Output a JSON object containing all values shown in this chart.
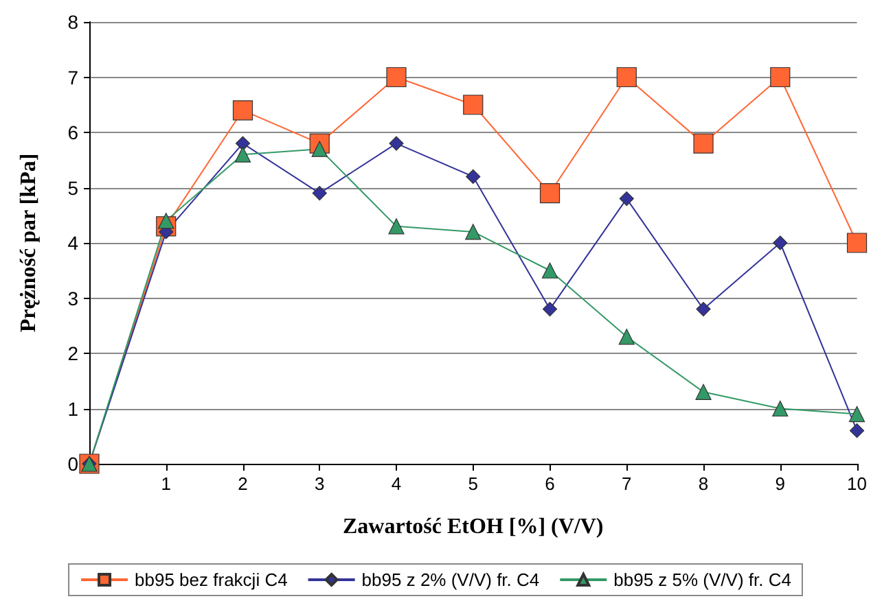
{
  "chart_data": {
    "type": "line",
    "xlabel": "Zawartość EtOH [%] (V/V)",
    "ylabel": "Prężność par [kPa]",
    "x": [
      0,
      1,
      2,
      3,
      4,
      5,
      6,
      7,
      8,
      9,
      10
    ],
    "xlim": [
      0,
      10
    ],
    "xticks": [
      {
        "value": 0,
        "label": null
      },
      1,
      2,
      3,
      4,
      5,
      6,
      7,
      8,
      9,
      10
    ],
    "ylim": [
      0,
      8
    ],
    "yticks": [
      0,
      1,
      2,
      3,
      4,
      5,
      6,
      7,
      8
    ],
    "grid": "y",
    "legend": "bottom",
    "series": [
      {
        "name": "bb95 bez frakcji C4",
        "color": "#ff6633",
        "marker": "square",
        "values": [
          0,
          4.3,
          6.4,
          5.8,
          7.0,
          6.5,
          4.9,
          7.0,
          5.8,
          7.0,
          4.0
        ]
      },
      {
        "name": "bb95 z 2% (V/V) fr. C4",
        "color": "#333399",
        "marker": "diamond",
        "values": [
          0,
          4.2,
          5.8,
          4.9,
          5.8,
          5.2,
          2.8,
          4.8,
          2.8,
          4.0,
          0.6
        ]
      },
      {
        "name": "bb95 z 5% (V/V) fr. C4",
        "color": "#339966",
        "marker": "triangle",
        "values": [
          0,
          4.4,
          5.6,
          5.7,
          4.3,
          4.2,
          3.5,
          2.3,
          1.3,
          1.0,
          0.9
        ]
      }
    ]
  }
}
